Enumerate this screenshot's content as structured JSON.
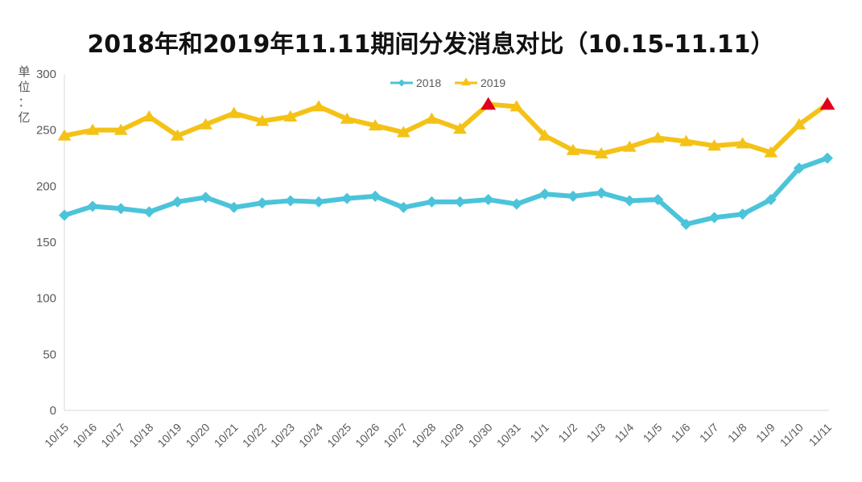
{
  "chart_data": {
    "type": "line",
    "title": "2018年和2019年11.11期间分发消息对比（10.15-11.11）",
    "ylabel": "单位：亿",
    "xlabel": "",
    "ylim": [
      0,
      300
    ],
    "yticks": [
      0,
      50,
      100,
      150,
      200,
      250,
      300
    ],
    "grid": false,
    "legend_position": "top",
    "categories": [
      "10/15",
      "10/16",
      "10/17",
      "10/18",
      "10/19",
      "10/20",
      "10/21",
      "10/22",
      "10/23",
      "10/24",
      "10/25",
      "10/26",
      "10/27",
      "10/28",
      "10/29",
      "10/30",
      "10/31",
      "11/1",
      "11/2",
      "11/3",
      "11/4",
      "11/5",
      "11/6",
      "11/7",
      "11/8",
      "11/9",
      "11/10",
      "11/11"
    ],
    "series": [
      {
        "name": "2018",
        "color": "#4BC4DA",
        "marker": "diamond",
        "values": [
          174,
          182,
          180,
          177,
          186,
          190,
          181,
          185,
          187,
          186,
          189,
          191,
          181,
          186,
          186,
          188,
          184,
          193,
          191,
          194,
          187,
          188,
          166,
          172,
          175,
          188,
          216,
          225
        ]
      },
      {
        "name": "2019",
        "color": "#F4C217",
        "marker": "triangle",
        "highlight_color": "#E0001B",
        "highlight_categories": [
          "10/30",
          "11/11"
        ],
        "values": [
          245,
          250,
          250,
          262,
          245,
          255,
          265,
          258,
          262,
          271,
          260,
          254,
          248,
          260,
          251,
          273,
          271,
          245,
          232,
          229,
          235,
          243,
          240,
          236,
          238,
          230,
          255,
          273
        ]
      }
    ]
  }
}
